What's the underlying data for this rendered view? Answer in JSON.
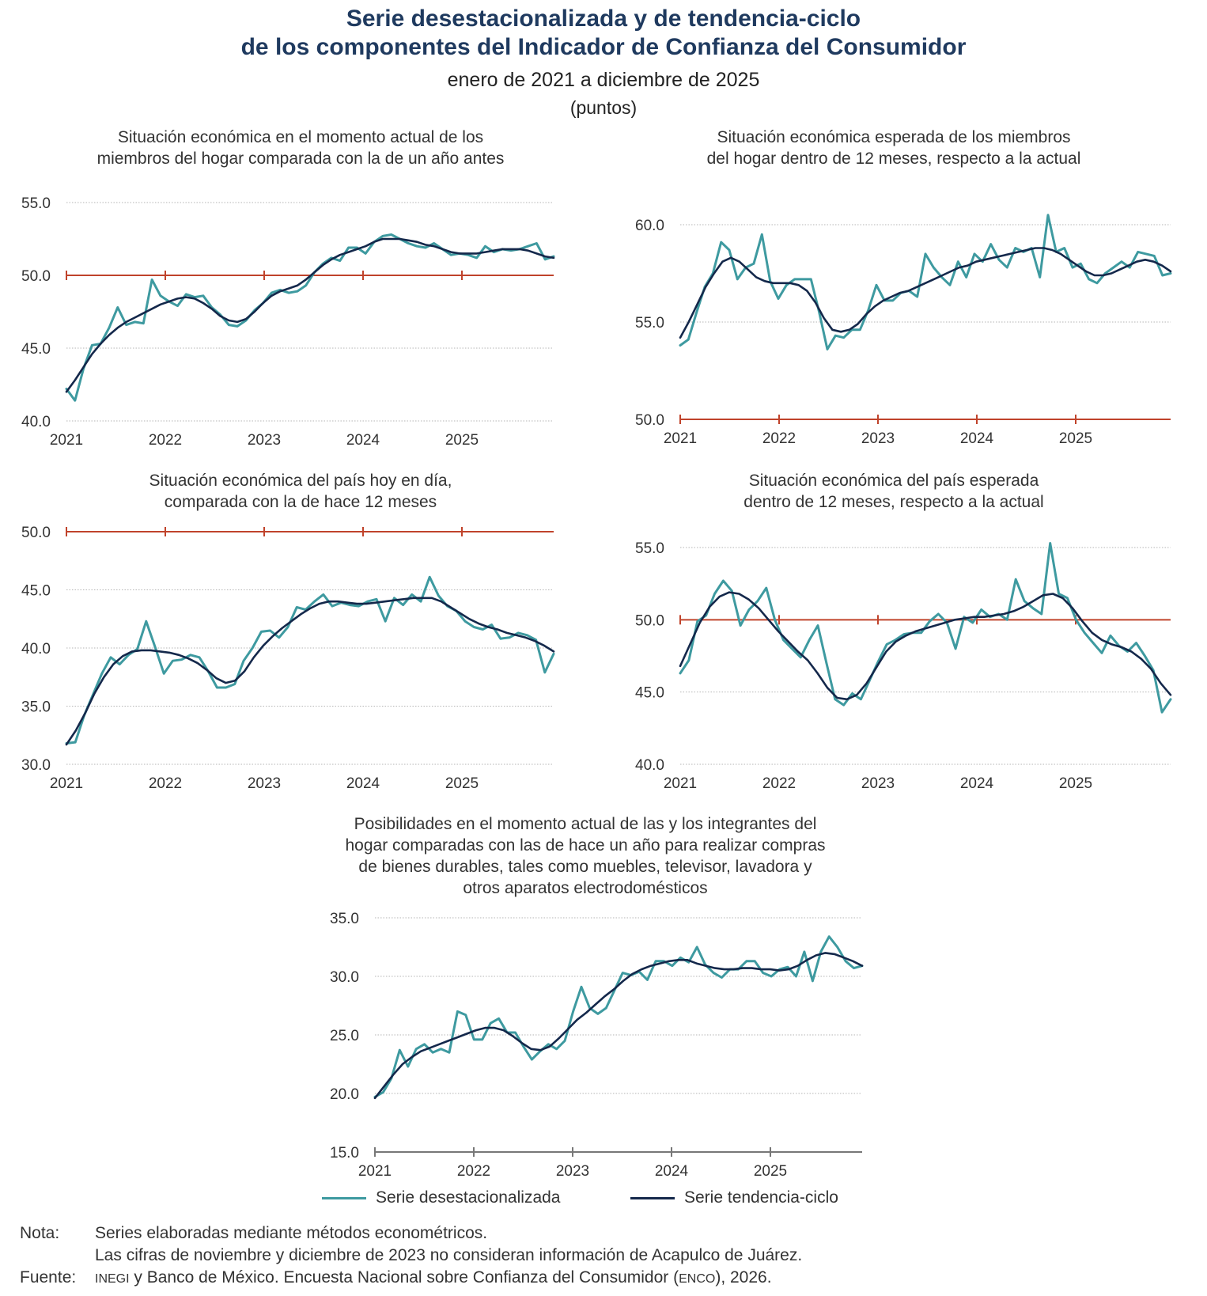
{
  "header": {
    "title_line1": "Serie desestacionalizada y de tendencia-ciclo",
    "title_line2": "de los componentes del Indicador de Confianza del Consumidor",
    "period": "enero de 2021 a diciembre de 2025",
    "units": "(puntos)"
  },
  "colors": {
    "title": "#1f3a5f",
    "seasonal": "#3e9aa0",
    "trend": "#14284b",
    "reference": "#c0432b",
    "grid": "#b5b5b5"
  },
  "legend": {
    "seasonal_label": "Serie desestacionalizada",
    "trend_label": "Serie tendencia-ciclo"
  },
  "notes": {
    "note_label": "Nota:",
    "note_line1": "Series elaboradas mediante métodos econométricos.",
    "note_line2": "Las cifras de noviembre y diciembre de 2023 no consideran información de Acapulco de Juárez.",
    "source_label": "Fuente:",
    "source_inegi": "INEGI",
    "source_mid": " y Banco de México. Encuesta Nacional sobre Confianza del Consumidor (",
    "source_enco": "ENCO",
    "source_end": "), 2026."
  },
  "chart_data": [
    {
      "id": "c1",
      "type": "line",
      "title_lines": [
        "Situación económica en el momento actual de los",
        "miembros del hogar comparada con la de un año antes"
      ],
      "x_labels": [
        "2021",
        "2022",
        "2023",
        "2024",
        "2025"
      ],
      "y_ticks": [
        40,
        45,
        50,
        55
      ],
      "y_tick_labels": [
        "40.0",
        "45.0",
        "50.0",
        "55.0"
      ],
      "ylim": [
        40,
        55
      ],
      "reference": 50,
      "series": [
        {
          "name": "Serie desestacionalizada",
          "values": [
            42.2,
            41.4,
            43.6,
            45.2,
            45.3,
            46.4,
            47.8,
            46.6,
            46.8,
            46.7,
            49.7,
            48.6,
            48.2,
            47.9,
            48.7,
            48.5,
            48.6,
            47.8,
            47.3,
            46.6,
            46.5,
            46.9,
            47.6,
            48.1,
            48.8,
            49.0,
            48.8,
            48.9,
            49.3,
            50.2,
            50.8,
            51.2,
            51.0,
            51.9,
            51.9,
            51.5,
            52.3,
            52.7,
            52.8,
            52.5,
            52.2,
            52.0,
            51.9,
            52.2,
            51.8,
            51.4,
            51.5,
            51.4,
            51.2,
            52.0,
            51.6,
            51.8,
            51.7,
            51.8,
            52.0,
            52.2,
            51.1,
            51.3
          ]
        },
        {
          "name": "Serie tendencia-ciclo",
          "values": [
            42.0,
            42.8,
            43.7,
            44.6,
            45.3,
            45.9,
            46.4,
            46.8,
            47.1,
            47.4,
            47.7,
            48.0,
            48.2,
            48.4,
            48.5,
            48.4,
            48.1,
            47.7,
            47.2,
            46.9,
            46.8,
            47.0,
            47.5,
            48.1,
            48.6,
            48.9,
            49.1,
            49.3,
            49.7,
            50.2,
            50.7,
            51.1,
            51.4,
            51.6,
            51.8,
            52.0,
            52.3,
            52.5,
            52.5,
            52.5,
            52.4,
            52.3,
            52.1,
            52.0,
            51.8,
            51.6,
            51.5,
            51.5,
            51.5,
            51.6,
            51.7,
            51.8,
            51.8,
            51.8,
            51.7,
            51.5,
            51.3,
            51.2
          ]
        }
      ]
    },
    {
      "id": "c2",
      "type": "line",
      "title_lines": [
        "Situación económica esperada de los miembros",
        "del hogar dentro de 12 meses, respecto a la actual"
      ],
      "x_labels": [
        "2021",
        "2022",
        "2023",
        "2024",
        "2025"
      ],
      "y_ticks": [
        50,
        55,
        60
      ],
      "y_tick_labels": [
        "50.0",
        "55.0",
        "60.0"
      ],
      "ylim": [
        50,
        60
      ],
      "reference": 50,
      "series": [
        {
          "name": "Serie desestacionalizada",
          "values": [
            53.8,
            54.1,
            55.5,
            56.8,
            57.5,
            59.1,
            58.7,
            57.2,
            57.8,
            58.0,
            59.5,
            57.1,
            56.2,
            56.9,
            57.2,
            57.2,
            57.2,
            55.5,
            53.6,
            54.3,
            54.2,
            54.6,
            54.6,
            55.6,
            56.9,
            56.1,
            56.1,
            56.5,
            56.6,
            56.3,
            58.5,
            57.8,
            57.3,
            56.9,
            58.1,
            57.3,
            58.5,
            58.1,
            59.0,
            58.2,
            57.8,
            58.8,
            58.6,
            58.8,
            57.3,
            60.5,
            58.6,
            58.8,
            57.8,
            58.0,
            57.2,
            57.0,
            57.5,
            57.8,
            58.1,
            57.8,
            58.6,
            58.5,
            58.4,
            57.4,
            57.5
          ]
        },
        {
          "name": "Serie tendencia-ciclo",
          "values": [
            54.2,
            55.0,
            55.9,
            56.8,
            57.5,
            58.1,
            58.3,
            58.1,
            57.7,
            57.3,
            57.1,
            57.0,
            57.0,
            57.0,
            56.9,
            56.6,
            56.0,
            55.2,
            54.6,
            54.5,
            54.6,
            54.9,
            55.4,
            55.8,
            56.1,
            56.3,
            56.5,
            56.6,
            56.8,
            57.0,
            57.2,
            57.4,
            57.6,
            57.8,
            57.9,
            58.1,
            58.2,
            58.3,
            58.4,
            58.5,
            58.6,
            58.7,
            58.8,
            58.8,
            58.7,
            58.5,
            58.2,
            57.9,
            57.6,
            57.4,
            57.4,
            57.5,
            57.7,
            57.9,
            58.1,
            58.2,
            58.1,
            57.9,
            57.6
          ]
        }
      ]
    },
    {
      "id": "c3",
      "type": "line",
      "title_lines": [
        "Situación económica del país hoy en día,",
        "comparada con la de hace 12 meses"
      ],
      "x_labels": [
        "2021",
        "2022",
        "2023",
        "2024",
        "2025"
      ],
      "y_ticks": [
        30,
        35,
        40,
        45,
        50
      ],
      "y_tick_labels": [
        "30.0",
        "35.0",
        "40.0",
        "45.0",
        "50.0"
      ],
      "ylim": [
        30,
        50
      ],
      "reference": 50,
      "series": [
        {
          "name": "Serie desestacionalizada",
          "values": [
            31.8,
            31.9,
            34.2,
            36.0,
            37.8,
            39.2,
            38.6,
            39.4,
            39.9,
            42.3,
            40.1,
            37.8,
            38.9,
            39.0,
            39.4,
            39.2,
            38.0,
            36.6,
            36.6,
            36.9,
            38.9,
            40.0,
            41.4,
            41.5,
            40.9,
            41.8,
            43.5,
            43.3,
            44.0,
            44.6,
            43.6,
            43.9,
            43.7,
            43.6,
            44.0,
            44.2,
            42.3,
            44.3,
            43.7,
            44.6,
            44.0,
            46.1,
            44.5,
            43.6,
            43.2,
            42.3,
            41.8,
            41.6,
            42.0,
            40.8,
            40.9,
            41.3,
            41.1,
            40.7,
            37.9,
            39.5
          ]
        },
        {
          "name": "Serie tendencia-ciclo",
          "values": [
            31.7,
            32.9,
            34.4,
            36.1,
            37.5,
            38.6,
            39.3,
            39.7,
            39.8,
            39.8,
            39.7,
            39.6,
            39.4,
            39.1,
            38.7,
            38.1,
            37.4,
            37.0,
            37.2,
            38.0,
            39.2,
            40.2,
            41.0,
            41.7,
            42.3,
            42.9,
            43.4,
            43.8,
            44.0,
            44.0,
            43.9,
            43.8,
            43.8,
            43.9,
            44.0,
            44.1,
            44.2,
            44.3,
            44.3,
            44.3,
            44.0,
            43.5,
            43.0,
            42.5,
            42.1,
            41.8,
            41.6,
            41.3,
            41.1,
            40.9,
            40.6,
            40.2,
            39.7
          ]
        }
      ]
    },
    {
      "id": "c4",
      "type": "line",
      "title_lines": [
        "Situación económica del país esperada",
        "dentro de 12 meses, respecto a la actual"
      ],
      "x_labels": [
        "2021",
        "2022",
        "2023",
        "2024",
        "2025"
      ],
      "y_ticks": [
        40,
        45,
        50,
        55
      ],
      "y_tick_labels": [
        "40.0",
        "45.0",
        "50.0",
        "55.0"
      ],
      "ylim": [
        40,
        55
      ],
      "reference": 50,
      "series": [
        {
          "name": "Serie desestacionalizada",
          "values": [
            46.3,
            47.2,
            49.9,
            50.3,
            51.8,
            52.7,
            52.0,
            49.6,
            50.7,
            51.3,
            52.2,
            50.0,
            48.6,
            48.0,
            47.4,
            48.6,
            49.6,
            47.0,
            44.5,
            44.1,
            44.9,
            44.5,
            45.8,
            47.1,
            48.3,
            48.6,
            49.0,
            49.1,
            49.1,
            49.9,
            50.4,
            49.8,
            48.0,
            50.2,
            49.8,
            50.7,
            50.2,
            50.4,
            50.0,
            52.8,
            51.3,
            50.8,
            50.4,
            55.3,
            51.8,
            51.5,
            50.0,
            49.1,
            48.4,
            47.7,
            48.9,
            48.2,
            47.8,
            48.4,
            47.5,
            46.5,
            43.6,
            44.5
          ]
        },
        {
          "name": "Serie tendencia-ciclo",
          "values": [
            46.8,
            48.3,
            49.8,
            50.9,
            51.6,
            51.9,
            51.8,
            51.4,
            50.8,
            50.0,
            49.2,
            48.5,
            47.8,
            47.2,
            46.3,
            45.3,
            44.6,
            44.5,
            44.8,
            45.6,
            46.7,
            47.8,
            48.5,
            48.9,
            49.2,
            49.4,
            49.6,
            49.8,
            50.0,
            50.1,
            50.2,
            50.2,
            50.3,
            50.4,
            50.6,
            50.9,
            51.3,
            51.7,
            51.8,
            51.5,
            50.8,
            49.9,
            49.1,
            48.6,
            48.3,
            48.1,
            47.8,
            47.3,
            46.6,
            45.6,
            44.8
          ]
        }
      ]
    },
    {
      "id": "c5",
      "type": "line",
      "title_lines": [
        "Posibilidades en el momento actual de las y los integrantes del",
        "hogar comparadas con las de hace un año para realizar compras",
        "de bienes durables, tales como muebles, televisor, lavadora y",
        "otros aparatos electrodomésticos"
      ],
      "x_labels": [
        "2021",
        "2022",
        "2023",
        "2024",
        "2025"
      ],
      "y_ticks": [
        15,
        20,
        25,
        30,
        35
      ],
      "y_tick_labels": [
        "15.0",
        "20.0",
        "25.0",
        "30.0",
        "35.0"
      ],
      "ylim": [
        15,
        35
      ],
      "reference": null,
      "series": [
        {
          "name": "Serie desestacionalizada",
          "values": [
            19.7,
            20.1,
            21.3,
            23.7,
            22.3,
            23.8,
            24.2,
            23.5,
            23.8,
            23.5,
            27.0,
            26.7,
            24.6,
            24.6,
            26.0,
            26.4,
            25.2,
            25.2,
            24.0,
            22.9,
            23.6,
            24.2,
            23.8,
            24.5,
            27.0,
            29.1,
            27.3,
            26.8,
            27.3,
            28.8,
            30.3,
            30.1,
            30.4,
            29.7,
            31.3,
            31.3,
            30.9,
            31.6,
            31.2,
            32.5,
            31.0,
            30.3,
            29.9,
            30.6,
            30.6,
            31.3,
            31.3,
            30.3,
            30.0,
            30.6,
            30.8,
            30.0,
            32.1,
            29.6,
            32.1,
            33.4,
            32.5,
            31.3,
            30.7,
            30.9
          ]
        },
        {
          "name": "Serie tendencia-ciclo",
          "values": [
            19.6,
            20.6,
            21.6,
            22.5,
            23.1,
            23.6,
            23.9,
            24.2,
            24.5,
            24.8,
            25.1,
            25.4,
            25.6,
            25.6,
            25.4,
            24.9,
            24.3,
            23.8,
            23.7,
            24.0,
            24.7,
            25.5,
            26.3,
            26.9,
            27.6,
            28.3,
            28.9,
            29.6,
            30.2,
            30.6,
            30.9,
            31.1,
            31.3,
            31.4,
            31.4,
            31.1,
            30.9,
            30.7,
            30.6,
            30.6,
            30.7,
            30.7,
            30.6,
            30.6,
            30.5,
            30.6,
            30.9,
            31.4,
            31.8,
            32.0,
            31.9,
            31.6,
            31.3,
            30.9
          ]
        }
      ]
    }
  ]
}
